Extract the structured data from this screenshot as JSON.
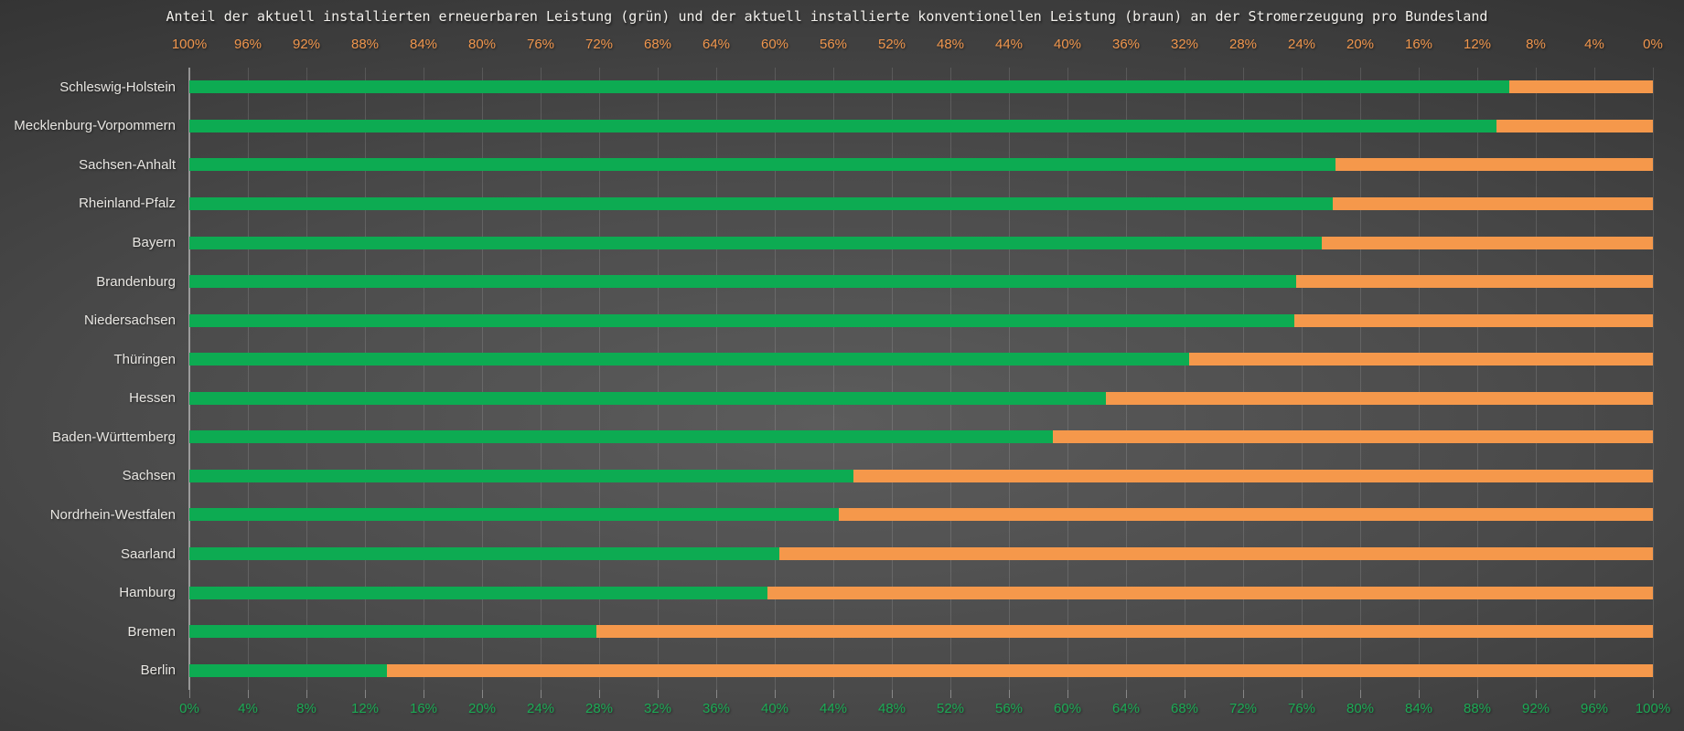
{
  "title": "Anteil der aktuell installierten erneuerbaren Leistung (grün) und der aktuell installierte konventionellen Leistung (braun) an der Stromerzeugung pro Bundesland",
  "colors": {
    "renewable_green": "#0dab52",
    "conventional_orange": "#f5984b",
    "top_axis_text": "#f0964d",
    "bottom_axis_text": "#1cab55",
    "state_label_text": "#e8e6e2",
    "title_text": "#f2f0ec",
    "background_center": "#5c5c5c",
    "background_edge": "#262626"
  },
  "top_axis": {
    "ticks": [
      "100%",
      "96%",
      "92%",
      "88%",
      "84%",
      "80%",
      "76%",
      "72%",
      "68%",
      "64%",
      "60%",
      "56%",
      "52%",
      "48%",
      "44%",
      "40%",
      "36%",
      "32%",
      "28%",
      "24%",
      "20%",
      "16%",
      "12%",
      "8%",
      "4%",
      "0%"
    ]
  },
  "bottom_axis": {
    "ticks": [
      "0%",
      "4%",
      "8%",
      "12%",
      "16%",
      "20%",
      "24%",
      "28%",
      "32%",
      "36%",
      "40%",
      "44%",
      "48%",
      "52%",
      "56%",
      "60%",
      "64%",
      "68%",
      "72%",
      "76%",
      "80%",
      "84%",
      "88%",
      "92%",
      "96%",
      "100%"
    ]
  },
  "chart_data": {
    "type": "bar",
    "orientation": "horizontal",
    "stacked": true,
    "title": "Anteil der aktuell installierten erneuerbaren Leistung (grün) und der aktuell installierte konventionellen Leistung (braun) an der Stromerzeugung pro Bundesland",
    "categories": [
      "Schleswig-Holstein",
      "Mecklenburg-Vorpommern",
      "Sachsen-Anhalt",
      "Rheinland-Pfalz",
      "Bayern",
      "Brandenburg",
      "Niedersachsen",
      "Thüringen",
      "Hessen",
      "Baden-Württemberg",
      "Sachsen",
      "Nordrhein-Westfalen",
      "Saarland",
      "Hamburg",
      "Bremen",
      "Berlin"
    ],
    "series": [
      {
        "name": "erneuerbare Leistung (grün)",
        "color": "#0dab52",
        "values": [
          90.2,
          89.3,
          78.3,
          78.1,
          77.4,
          75.6,
          75.5,
          68.3,
          62.6,
          59.0,
          45.4,
          44.4,
          40.3,
          39.5,
          27.8,
          13.5
        ]
      },
      {
        "name": "konventionelle Leistung (braun)",
        "color": "#f5984b",
        "values": [
          9.8,
          10.7,
          21.7,
          21.9,
          22.6,
          24.4,
          24.5,
          31.7,
          37.4,
          41.0,
          54.6,
          55.6,
          59.7,
          60.5,
          72.2,
          86.5
        ]
      }
    ],
    "xlabel": "",
    "ylabel": "",
    "xlim": [
      0,
      100
    ],
    "x_tick_step": 4,
    "grid": true,
    "legend": "none"
  }
}
